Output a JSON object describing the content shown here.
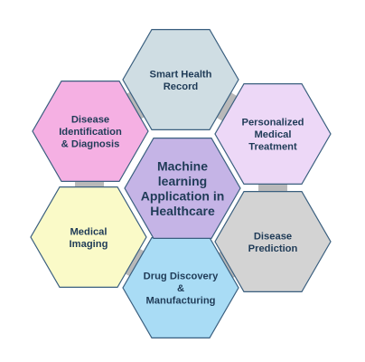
{
  "diagram": {
    "center": {
      "lines": [
        "Machine",
        "learning",
        "Application in",
        "Healthcare"
      ],
      "fill": "#c5b4e6"
    },
    "nodes": [
      {
        "id": "smart-health-record",
        "lines": [
          "Smart Health",
          "Record"
        ],
        "fill": "#cfdde3"
      },
      {
        "id": "personalized-medical-treatment",
        "lines": [
          "Personalized",
          "Medical",
          "Treatment"
        ],
        "fill": "#edd8f7"
      },
      {
        "id": "disease-prediction",
        "lines": [
          "Disease",
          "Prediction"
        ],
        "fill": "#d3d3d3"
      },
      {
        "id": "drug-discovery-manufacturing",
        "lines": [
          "Drug Discovery",
          "&",
          "Manufacturing"
        ],
        "fill": "#a9dcf5"
      },
      {
        "id": "medical-imaging",
        "lines": [
          "Medical",
          "Imaging"
        ],
        "fill": "#fafac8"
      },
      {
        "id": "disease-identification-diagnosis",
        "lines": [
          "Disease",
          "Identification",
          "& Diagnosis"
        ],
        "fill": "#f5b0e3"
      }
    ],
    "colors": {
      "outline": "#3a5f7f",
      "connector": "#b9b9b9"
    }
  }
}
